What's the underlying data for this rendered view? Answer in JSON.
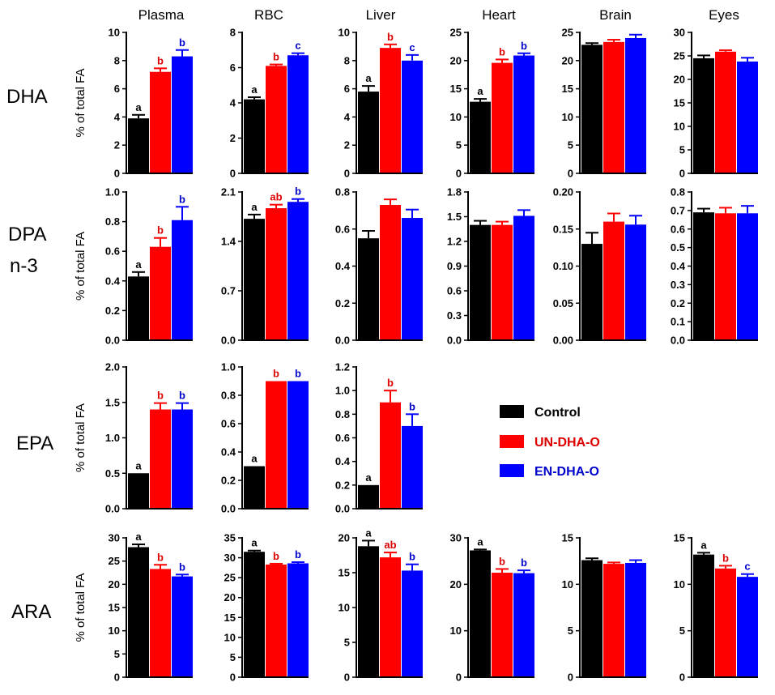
{
  "colors": {
    "control": "#000000",
    "un": "#ff0000",
    "en": "#0000ff"
  },
  "legend": [
    {
      "key": "control",
      "label": "Control",
      "color": "#000000",
      "text_color": "#000000"
    },
    {
      "key": "un",
      "label": "UN-DHA-O",
      "color": "#ff0000",
      "text_color": "#dd0000"
    },
    {
      "key": "en",
      "label": "EN-DHA-O",
      "color": "#0000ff",
      "text_color": "#0000cc"
    }
  ],
  "columns": [
    "Plasma",
    "RBC",
    "Liver",
    "Heart",
    "Brain",
    "Eyes"
  ],
  "rows": [
    {
      "label_lines": [
        "DHA"
      ]
    },
    {
      "label_lines": [
        "DPA",
        "n-3"
      ]
    },
    {
      "label_lines": [
        "EPA"
      ]
    },
    {
      "label_lines": [
        "ARA"
      ]
    }
  ],
  "ylabel": "% of total FA",
  "chart_data": [
    {
      "type": "bar",
      "row": 0,
      "col": 0,
      "title": "Plasma",
      "ylabel": "% of total FA",
      "ylim": [
        0,
        10
      ],
      "yticks": [
        "0",
        "2",
        "4",
        "6",
        "8",
        "10"
      ],
      "categories": [
        "Control",
        "UN-DHA-O",
        "EN-DHA-O"
      ],
      "values": [
        3.9,
        7.2,
        8.3
      ],
      "errors": [
        0.25,
        0.25,
        0.45
      ],
      "labels": [
        "a",
        "b",
        "b"
      ]
    },
    {
      "type": "bar",
      "row": 0,
      "col": 1,
      "title": "RBC",
      "ylabel": "",
      "ylim": [
        0,
        8
      ],
      "yticks": [
        "0",
        "2",
        "4",
        "6",
        "8"
      ],
      "categories": [
        "Control",
        "UN-DHA-O",
        "EN-DHA-O"
      ],
      "values": [
        4.2,
        6.1,
        6.7
      ],
      "errors": [
        0.12,
        0.08,
        0.12
      ],
      "labels": [
        "a",
        "b",
        "c"
      ]
    },
    {
      "type": "bar",
      "row": 0,
      "col": 2,
      "title": "Liver",
      "ylabel": "",
      "ylim": [
        0,
        10
      ],
      "yticks": [
        "0",
        "2",
        "4",
        "6",
        "8",
        "10"
      ],
      "categories": [
        "Control",
        "UN-DHA-O",
        "EN-DHA-O"
      ],
      "values": [
        5.8,
        8.9,
        8.0
      ],
      "errors": [
        0.4,
        0.25,
        0.4
      ],
      "labels": [
        "a",
        "b",
        "c"
      ]
    },
    {
      "type": "bar",
      "row": 0,
      "col": 3,
      "title": "Heart",
      "ylabel": "",
      "ylim": [
        0,
        25
      ],
      "yticks": [
        "0",
        "5",
        "10",
        "15",
        "20",
        "25"
      ],
      "categories": [
        "Control",
        "UN-DHA-O",
        "EN-DHA-O"
      ],
      "values": [
        12.7,
        19.6,
        20.9
      ],
      "errors": [
        0.5,
        0.6,
        0.4
      ],
      "labels": [
        "a",
        "b",
        "b"
      ]
    },
    {
      "type": "bar",
      "row": 0,
      "col": 4,
      "title": "Brain",
      "ylabel": "",
      "ylim": [
        0,
        25
      ],
      "yticks": [
        "0",
        "5",
        "10",
        "15",
        "20",
        "25"
      ],
      "categories": [
        "Control",
        "UN-DHA-O",
        "EN-DHA-O"
      ],
      "values": [
        22.8,
        23.3,
        24.0
      ],
      "errors": [
        0.3,
        0.4,
        0.6
      ],
      "labels": [
        "",
        "",
        ""
      ]
    },
    {
      "type": "bar",
      "row": 0,
      "col": 5,
      "title": "Eyes",
      "ylabel": "",
      "ylim": [
        0,
        30
      ],
      "yticks": [
        "0",
        "5",
        "10",
        "15",
        "20",
        "25",
        "30"
      ],
      "categories": [
        "Control",
        "UN-DHA-O",
        "EN-DHA-O"
      ],
      "values": [
        24.5,
        25.9,
        23.8
      ],
      "errors": [
        0.6,
        0.3,
        0.8
      ],
      "labels": [
        "",
        "",
        ""
      ]
    },
    {
      "type": "bar",
      "row": 1,
      "col": 0,
      "title": "Plasma",
      "ylabel": "% of total FA",
      "ylim": [
        0,
        1.0
      ],
      "yticks": [
        "0.0",
        "0.2",
        "0.4",
        "0.6",
        "0.8",
        "1.0"
      ],
      "categories": [
        "Control",
        "UN-DHA-O",
        "EN-DHA-O"
      ],
      "values": [
        0.43,
        0.63,
        0.81
      ],
      "errors": [
        0.03,
        0.06,
        0.09
      ],
      "labels": [
        "a",
        "b",
        "b"
      ]
    },
    {
      "type": "bar",
      "row": 1,
      "col": 1,
      "title": "RBC",
      "ylabel": "",
      "ylim": [
        0,
        2.1
      ],
      "yticks": [
        "0.0",
        "0.7",
        "1.4",
        "2.1"
      ],
      "categories": [
        "Control",
        "UN-DHA-O",
        "EN-DHA-O"
      ],
      "values": [
        1.72,
        1.87,
        1.96
      ],
      "errors": [
        0.06,
        0.05,
        0.04
      ],
      "labels": [
        "a",
        "ab",
        "b"
      ]
    },
    {
      "type": "bar",
      "row": 1,
      "col": 2,
      "title": "Liver",
      "ylabel": "",
      "ylim": [
        0,
        0.8
      ],
      "yticks": [
        "0.0",
        "0.2",
        "0.4",
        "0.6",
        "0.8"
      ],
      "categories": [
        "Control",
        "UN-DHA-O",
        "EN-DHA-O"
      ],
      "values": [
        0.55,
        0.73,
        0.66
      ],
      "errors": [
        0.04,
        0.03,
        0.045
      ],
      "labels": [
        "",
        "",
        ""
      ]
    },
    {
      "type": "bar",
      "row": 1,
      "col": 3,
      "title": "Heart",
      "ylabel": "",
      "ylim": [
        0,
        1.8
      ],
      "yticks": [
        "0.0",
        "0.3",
        "0.6",
        "0.9",
        "1.2",
        "1.5",
        "1.8"
      ],
      "categories": [
        "Control",
        "UN-DHA-O",
        "EN-DHA-O"
      ],
      "values": [
        1.4,
        1.4,
        1.51
      ],
      "errors": [
        0.05,
        0.04,
        0.07
      ],
      "labels": [
        "",
        "",
        ""
      ]
    },
    {
      "type": "bar",
      "row": 1,
      "col": 4,
      "title": "Brain",
      "ylabel": "",
      "ylim": [
        0,
        0.2
      ],
      "yticks": [
        "0.00",
        "0.05",
        "0.10",
        "0.15",
        "0.20"
      ],
      "categories": [
        "Control",
        "UN-DHA-O",
        "EN-DHA-O"
      ],
      "values": [
        0.13,
        0.16,
        0.156
      ],
      "errors": [
        0.015,
        0.011,
        0.012
      ],
      "labels": [
        "",
        "",
        ""
      ]
    },
    {
      "type": "bar",
      "row": 1,
      "col": 5,
      "title": "Eyes",
      "ylabel": "",
      "ylim": [
        0,
        0.8
      ],
      "yticks": [
        "0.0",
        "0.1",
        "0.2",
        "0.3",
        "0.4",
        "0.5",
        "0.6",
        "0.7",
        "0.8"
      ],
      "categories": [
        "Control",
        "UN-DHA-O",
        "EN-DHA-O"
      ],
      "values": [
        0.69,
        0.685,
        0.685
      ],
      "errors": [
        0.02,
        0.03,
        0.04
      ],
      "labels": [
        "",
        "",
        ""
      ]
    },
    {
      "type": "bar",
      "row": 2,
      "col": 0,
      "title": "Plasma",
      "ylabel": "% of total FA",
      "ylim": [
        0,
        2.0
      ],
      "yticks": [
        "0.0",
        "0.5",
        "1.0",
        "1.5",
        "2.0"
      ],
      "categories": [
        "Control",
        "UN-DHA-O",
        "EN-DHA-O"
      ],
      "values": [
        0.5,
        1.4,
        1.4
      ],
      "errors": [
        0.0,
        0.09,
        0.09
      ],
      "labels": [
        "a",
        "b",
        "b"
      ]
    },
    {
      "type": "bar",
      "row": 2,
      "col": 1,
      "title": "RBC",
      "ylabel": "",
      "ylim": [
        0,
        1.0
      ],
      "yticks": [
        "0.0",
        "0.2",
        "0.4",
        "0.6",
        "0.8",
        "1.0"
      ],
      "categories": [
        "Control",
        "UN-DHA-O",
        "EN-DHA-O"
      ],
      "values": [
        0.3,
        0.9,
        0.9
      ],
      "errors": [
        0.0,
        0.0,
        0.0
      ],
      "labels": [
        "a",
        "b",
        "b"
      ]
    },
    {
      "type": "bar",
      "row": 2,
      "col": 2,
      "title": "Liver",
      "ylabel": "",
      "ylim": [
        0,
        1.2
      ],
      "yticks": [
        "0.0",
        "0.2",
        "0.4",
        "0.6",
        "0.8",
        "1.0",
        "1.2"
      ],
      "categories": [
        "Control",
        "UN-DHA-O",
        "EN-DHA-O"
      ],
      "values": [
        0.2,
        0.9,
        0.7
      ],
      "errors": [
        0.0,
        0.1,
        0.1
      ],
      "labels": [
        "a",
        "b",
        "b"
      ]
    },
    {
      "type": "bar",
      "row": 3,
      "col": 0,
      "title": "Plasma",
      "ylabel": "% of total FA",
      "ylim": [
        0,
        30
      ],
      "yticks": [
        "0",
        "5",
        "10",
        "15",
        "20",
        "25",
        "30"
      ],
      "categories": [
        "Control",
        "UN-DHA-O",
        "EN-DHA-O"
      ],
      "values": [
        28.0,
        23.3,
        21.7
      ],
      "errors": [
        0.6,
        0.9,
        0.4
      ],
      "labels": [
        "a",
        "b",
        "b"
      ]
    },
    {
      "type": "bar",
      "row": 3,
      "col": 1,
      "title": "RBC",
      "ylabel": "",
      "ylim": [
        0,
        35
      ],
      "yticks": [
        "0",
        "5",
        "10",
        "15",
        "20",
        "25",
        "30",
        "35"
      ],
      "categories": [
        "Control",
        "UN-DHA-O",
        "EN-DHA-O"
      ],
      "values": [
        31.5,
        28.3,
        28.6
      ],
      "errors": [
        0.3,
        0.2,
        0.3
      ],
      "labels": [
        "a",
        "b",
        "b"
      ]
    },
    {
      "type": "bar",
      "row": 3,
      "col": 2,
      "title": "Liver",
      "ylabel": "",
      "ylim": [
        0,
        20
      ],
      "yticks": [
        "0",
        "5",
        "10",
        "15",
        "20"
      ],
      "categories": [
        "Control",
        "UN-DHA-O",
        "EN-DHA-O"
      ],
      "values": [
        18.8,
        17.2,
        15.3
      ],
      "errors": [
        0.8,
        0.7,
        0.9
      ],
      "labels": [
        "a",
        "ab",
        "b"
      ]
    },
    {
      "type": "bar",
      "row": 3,
      "col": 3,
      "title": "Heart",
      "ylabel": "",
      "ylim": [
        0,
        30
      ],
      "yticks": [
        "0",
        "10",
        "20",
        "30"
      ],
      "categories": [
        "Control",
        "UN-DHA-O",
        "EN-DHA-O"
      ],
      "values": [
        27.3,
        22.5,
        22.4
      ],
      "errors": [
        0.2,
        0.8,
        0.6
      ],
      "labels": [
        "a",
        "b",
        "b"
      ]
    },
    {
      "type": "bar",
      "row": 3,
      "col": 4,
      "title": "Brain",
      "ylabel": "",
      "ylim": [
        0,
        15
      ],
      "yticks": [
        "0",
        "5",
        "10",
        "15"
      ],
      "categories": [
        "Control",
        "UN-DHA-O",
        "EN-DHA-O"
      ],
      "values": [
        12.6,
        12.2,
        12.3
      ],
      "errors": [
        0.2,
        0.15,
        0.3
      ],
      "labels": [
        "",
        "",
        ""
      ]
    },
    {
      "type": "bar",
      "row": 3,
      "col": 5,
      "title": "Eyes",
      "ylabel": "",
      "ylim": [
        0,
        15
      ],
      "yticks": [
        "0",
        "5",
        "10",
        "15"
      ],
      "categories": [
        "Control",
        "UN-DHA-O",
        "EN-DHA-O"
      ],
      "values": [
        13.2,
        11.7,
        10.8
      ],
      "errors": [
        0.2,
        0.3,
        0.3
      ],
      "labels": [
        "a",
        "b",
        "c"
      ]
    }
  ]
}
